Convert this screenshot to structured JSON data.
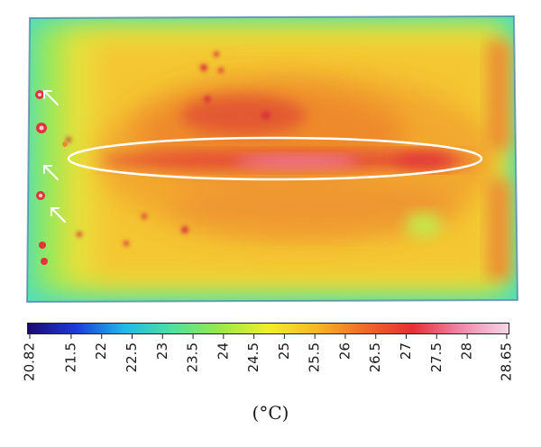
{
  "colorbar": {
    "min": 20.82,
    "max": 28.65,
    "ticks": [
      {
        "value": 20.82,
        "label": "20.82"
      },
      {
        "value": 21.5,
        "label": "21.5"
      },
      {
        "value": 22,
        "label": "22"
      },
      {
        "value": 22.5,
        "label": "22.5"
      },
      {
        "value": 23,
        "label": "23"
      },
      {
        "value": 23.5,
        "label": "23.5"
      },
      {
        "value": 24,
        "label": "24"
      },
      {
        "value": 24.5,
        "label": "24.5"
      },
      {
        "value": 25,
        "label": "25"
      },
      {
        "value": 25.5,
        "label": "25.5"
      },
      {
        "value": 26,
        "label": "26"
      },
      {
        "value": 26.5,
        "label": "26.5"
      },
      {
        "value": 27,
        "label": "27"
      },
      {
        "value": 27.5,
        "label": "27.5"
      },
      {
        "value": 28,
        "label": "28"
      },
      {
        "value": 28.65,
        "label": "28.65"
      }
    ],
    "unit_label": "(°C)",
    "colors": [
      "#1a0a6e",
      "#1d3bd8",
      "#20b8e8",
      "#4fe0a0",
      "#9ae84a",
      "#f0ee2c",
      "#f6b826",
      "#ee6a28",
      "#e43036",
      "#ee88aa",
      "#f7d6e6"
    ]
  }
}
